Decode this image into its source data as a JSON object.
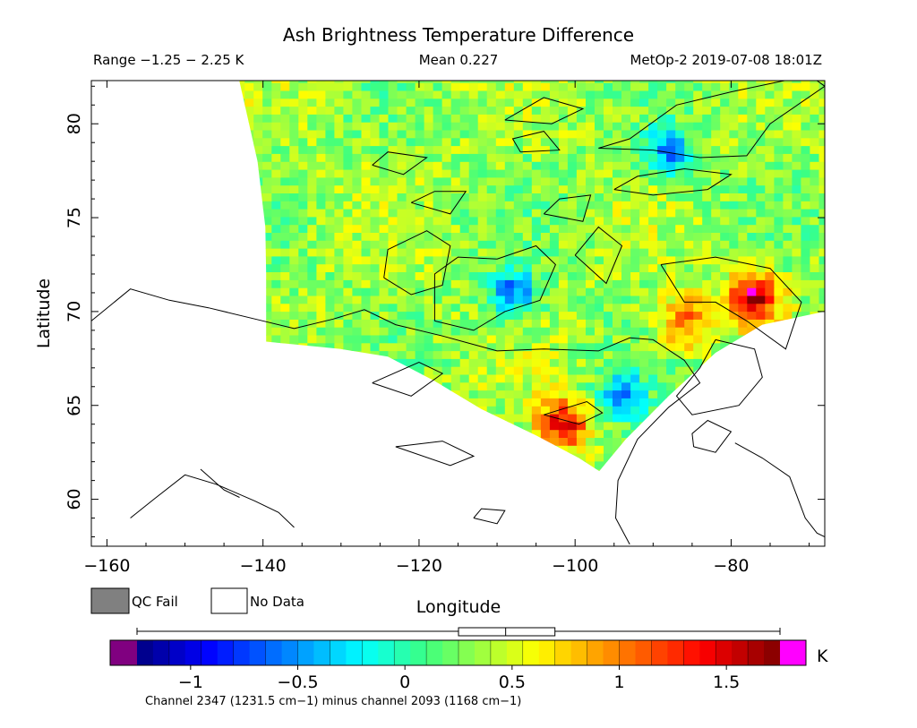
{
  "chart_data": {
    "type": "heatmap",
    "title": "Ash Brightness Temperature Difference",
    "subtitle_left": "Range −1.25 − 2.25 K",
    "subtitle_center": "Mean 0.227",
    "subtitle_right": "MetOp-2 2019-07-08 18:01Z",
    "xlabel": "Longitude",
    "ylabel": "Latitude",
    "xlim": [
      -162,
      -68
    ],
    "ylim": [
      57.5,
      82.3
    ],
    "x_ticks": [
      -160,
      -140,
      -120,
      -100,
      -80
    ],
    "x_tick_labels": [
      "−160",
      "−140",
      "−120",
      "−100",
      "−80"
    ],
    "y_ticks": [
      60,
      65,
      70,
      75,
      80
    ],
    "y_tick_labels": [
      "60",
      "65",
      "70",
      "75",
      "80"
    ],
    "legend": [
      {
        "label": "QC Fail",
        "color": "#808080"
      },
      {
        "label": "No Data",
        "color": "#ffffff"
      }
    ],
    "colorbar": {
      "vmin": -1.25,
      "vmax": 1.75,
      "ticks": [
        -1,
        -0.5,
        0,
        0.5,
        1,
        1.5
      ],
      "tick_labels": [
        "−1",
        "−0.5",
        "0",
        "0.5",
        "1",
        "1.5"
      ],
      "unit": "K",
      "under_color": "#800080",
      "over_color": "#ff00ff",
      "boxplot": {
        "min": -1.25,
        "q1": 0.25,
        "median": 0.47,
        "q3": 0.7,
        "max": 1.75
      },
      "caption": "Channel 2347 (1231.5 cm−1) minus channel 2093 (1168 cm−1)"
    },
    "hotspots": [
      {
        "lon": -101.5,
        "lat": 64.0,
        "value": 1.4
      },
      {
        "lon": -77.0,
        "lat": 70.8,
        "value": 1.6
      },
      {
        "lon": -86.0,
        "lat": 69.5,
        "value": 1.1
      }
    ],
    "coldspots": [
      {
        "lon": -108.0,
        "lat": 71.0,
        "value": -0.6
      },
      {
        "lon": -88.0,
        "lat": 78.5,
        "value": -0.6
      },
      {
        "lon": -94.0,
        "lat": 65.5,
        "value": -0.5
      }
    ]
  }
}
